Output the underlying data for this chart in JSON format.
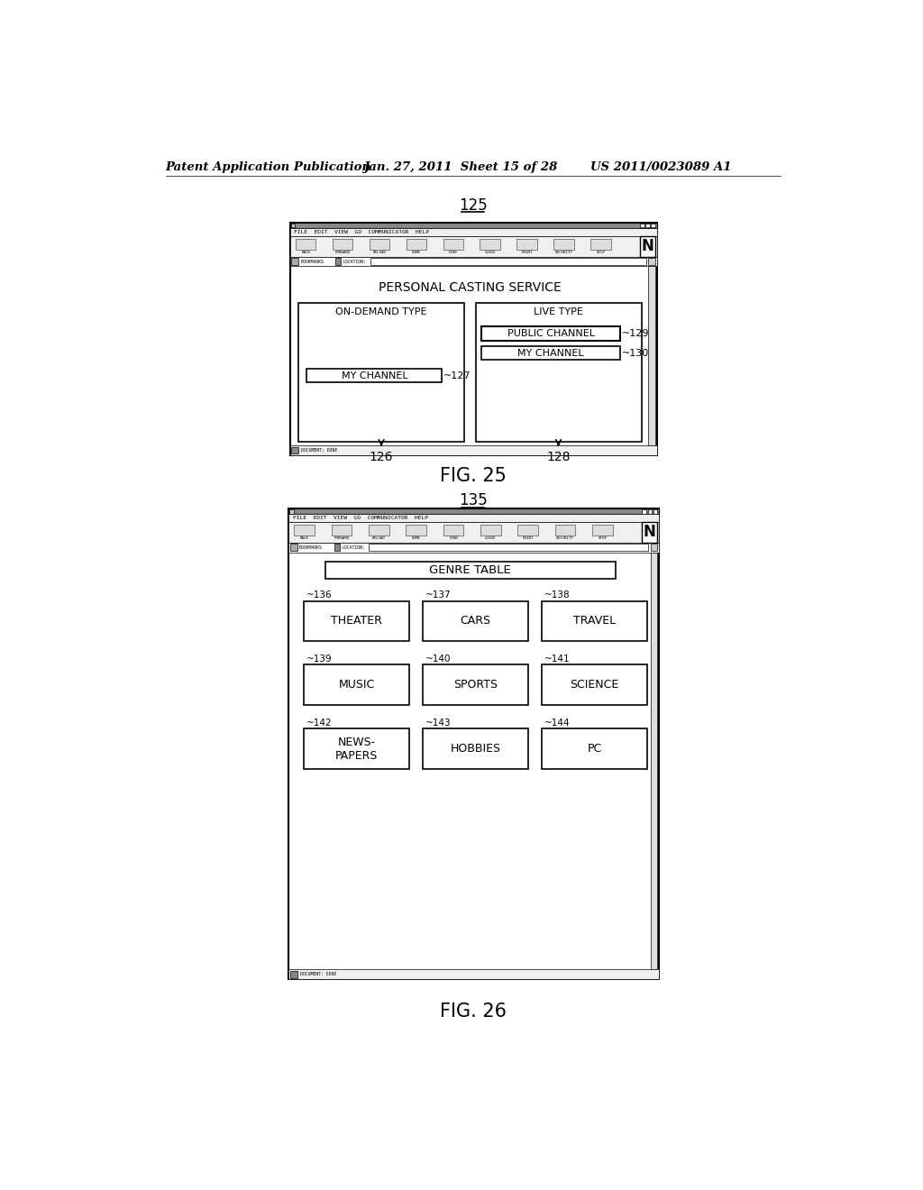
{
  "bg_color": "#ffffff",
  "header_text": "Patent Application Publication",
  "header_date": "Jan. 27, 2011  Sheet 15 of 28",
  "header_patent": "US 2011/0023089 A1",
  "fig25_label": "125",
  "fig25_caption": "FIG. 25",
  "fig26_label": "135",
  "fig26_caption": "FIG. 26",
  "fig25_title": "PERSONAL CASTING SERVICE",
  "fig25_menu": "FILE  EDIT  VIEW  GO  COMMUNICATOR  HELP",
  "fig25_status": "DOCUMENT: DONE",
  "fig25_box1_title": "ON-DEMAND TYPE",
  "fig25_box1_btn": "MY CHANNEL",
  "fig25_box1_btn_label": "~127",
  "fig25_box1_label": "126",
  "fig25_box2_title": "LIVE TYPE",
  "fig25_box2_btn1": "PUBLIC CHANNEL",
  "fig25_box2_btn1_label": "~129",
  "fig25_box2_btn2": "MY CHANNEL",
  "fig25_box2_btn2_label": "~130",
  "fig25_box2_label": "128",
  "fig26_menu": "FILE  EDIT  VIEW  GO  COMMUNICATOR  HELP",
  "fig26_status": "DOCUMENT: DONE",
  "fig26_table_title": "GENRE TABLE",
  "fig26_cells": [
    {
      "label": "~136",
      "text": "THEATER",
      "row": 0,
      "col": 0
    },
    {
      "label": "~137",
      "text": "CARS",
      "row": 0,
      "col": 1
    },
    {
      "label": "~138",
      "text": "TRAVEL",
      "row": 0,
      "col": 2
    },
    {
      "label": "~139",
      "text": "MUSIC",
      "row": 1,
      "col": 0
    },
    {
      "label": "~140",
      "text": "SPORTS",
      "row": 1,
      "col": 1
    },
    {
      "label": "~141",
      "text": "SCIENCE",
      "row": 1,
      "col": 2
    },
    {
      "label": "~142",
      "text": "NEWS-\nPAPERS",
      "row": 2,
      "col": 0
    },
    {
      "label": "~143",
      "text": "HOBBIES",
      "row": 2,
      "col": 1
    },
    {
      "label": "~144",
      "text": "PC",
      "row": 2,
      "col": 2
    }
  ],
  "toolbar_icons": [
    "BACK",
    "FORWARD",
    "RELOAD",
    "HOME",
    "FIND",
    "GUIDE",
    "PRINT",
    "SECURITY",
    "STOP"
  ]
}
